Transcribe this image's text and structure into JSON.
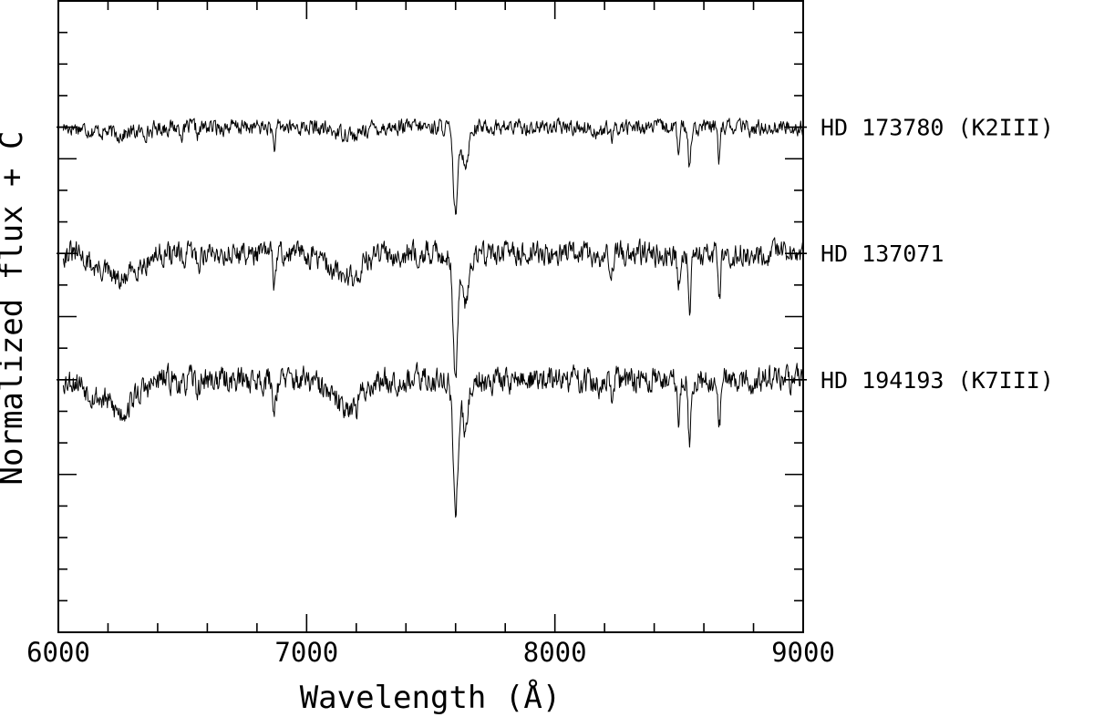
{
  "chart_data": {
    "type": "line",
    "title": "",
    "xlabel": "Wavelength (Å)",
    "ylabel": "Normalized flux + C",
    "xlim": [
      6000,
      9000
    ],
    "ylim": [
      0,
      10
    ],
    "xticks": {
      "major": [
        6000,
        7000,
        8000,
        9000
      ],
      "major_labels": [
        "6000",
        "7000",
        "8000",
        "9000"
      ],
      "minor_step": 200
    },
    "y_labels_shown": false,
    "grid": false,
    "legend": "none",
    "series_label_position": "right",
    "features": [
      {
        "lambda": 6150,
        "depth": 0.12,
        "width": 35
      },
      {
        "lambda": 6250,
        "depth": 0.28,
        "width": 45
      },
      {
        "lambda": 6350,
        "depth": 0.07,
        "width": 30
      },
      {
        "lambda": 6500,
        "depth": 0.1,
        "width": 8
      },
      {
        "lambda": 6563,
        "depth": 0.12,
        "width": 6
      },
      {
        "lambda": 6870,
        "depth": 0.3,
        "width": 6
      },
      {
        "lambda": 7150,
        "depth": 0.22,
        "width": 60
      },
      {
        "lambda": 7200,
        "depth": 0.12,
        "width": 10
      },
      {
        "lambda": 7600,
        "depth": 1.3,
        "width": 10
      },
      {
        "lambda": 7640,
        "depth": 0.55,
        "width": 12
      },
      {
        "lambda": 8180,
        "depth": 0.08,
        "width": 20
      },
      {
        "lambda": 8230,
        "depth": 0.22,
        "width": 6
      },
      {
        "lambda": 8498,
        "depth": 0.4,
        "width": 5
      },
      {
        "lambda": 8542,
        "depth": 0.6,
        "width": 5
      },
      {
        "lambda": 8662,
        "depth": 0.48,
        "width": 5
      },
      {
        "lambda": 8800,
        "depth": 0.06,
        "width": 10
      }
    ],
    "series": [
      {
        "name": "HD 173780 (K2III)",
        "offset": 8.0,
        "continuum_slope": 0.0,
        "strength": 0.65,
        "band_strength": 0.25,
        "noise": 0.06,
        "seed": 17
      },
      {
        "name": "HD 137071",
        "offset": 6.0,
        "continuum_slope": 0.0,
        "strength": 0.9,
        "band_strength": 1.0,
        "noise": 0.09,
        "seed": 31
      },
      {
        "name": "HD 194193 (K7III)",
        "offset": 4.0,
        "continuum_slope": 0.0,
        "strength": 1.0,
        "band_strength": 1.15,
        "noise": 0.1,
        "seed": 53
      }
    ]
  }
}
